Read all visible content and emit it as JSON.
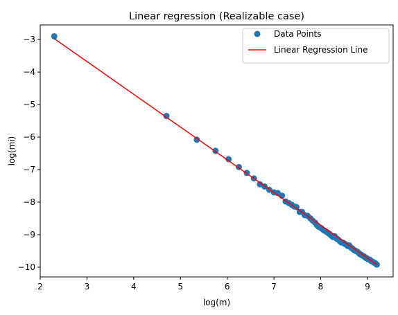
{
  "chart_data": {
    "type": "scatter",
    "title": "Linear regression (Realizable case)",
    "xlabel": "log(m)",
    "ylabel": "log(mi)",
    "xlim": [
      2.0,
      9.55
    ],
    "ylim": [
      -10.3,
      -2.55
    ],
    "xticks": [
      2,
      3,
      4,
      5,
      6,
      7,
      8,
      9
    ],
    "yticks": [
      -3,
      -4,
      -5,
      -6,
      -7,
      -8,
      -9,
      -10
    ],
    "xtick_labels": [
      "2",
      "3",
      "4",
      "5",
      "6",
      "7",
      "8",
      "9"
    ],
    "ytick_labels": [
      "−3",
      "−4",
      "−5",
      "−6",
      "−7",
      "−8",
      "−9",
      "−10"
    ],
    "grid": false,
    "legend_position": "top-right",
    "series": [
      {
        "name": "Data Points",
        "kind": "scatter",
        "color": "#1f77b4",
        "x": [
          2.3,
          4.7,
          5.35,
          5.75,
          6.03,
          6.25,
          6.42,
          6.57,
          6.7,
          6.8,
          6.9,
          7.0,
          7.08,
          7.17,
          7.25,
          7.32,
          7.38,
          7.43,
          7.48,
          7.55,
          7.6,
          7.66,
          7.72,
          7.78,
          7.83,
          7.88,
          7.92,
          7.96,
          8.01,
          8.06,
          8.1,
          8.14,
          8.18,
          8.22,
          8.26,
          8.3,
          8.34,
          8.37,
          8.41,
          8.44,
          8.48,
          8.51,
          8.55,
          8.58,
          8.61,
          8.65,
          8.68,
          8.71,
          8.75,
          8.78,
          8.81,
          8.84,
          8.87,
          8.9,
          8.93,
          8.96,
          8.99,
          9.02,
          9.05,
          9.08,
          9.11,
          9.14,
          9.17,
          9.2
        ],
        "y": [
          -2.9,
          -5.35,
          -6.08,
          -6.42,
          -6.68,
          -6.92,
          -7.1,
          -7.27,
          -7.45,
          -7.52,
          -7.62,
          -7.7,
          -7.72,
          -7.8,
          -7.98,
          -8.03,
          -8.08,
          -8.13,
          -8.15,
          -8.3,
          -8.3,
          -8.4,
          -8.42,
          -8.5,
          -8.57,
          -8.63,
          -8.71,
          -8.76,
          -8.8,
          -8.86,
          -8.89,
          -8.93,
          -8.97,
          -9.02,
          -9.07,
          -9.05,
          -9.12,
          -9.15,
          -9.2,
          -9.24,
          -9.25,
          -9.28,
          -9.31,
          -9.35,
          -9.33,
          -9.4,
          -9.43,
          -9.47,
          -9.5,
          -9.52,
          -9.56,
          -9.6,
          -9.62,
          -9.65,
          -9.67,
          -9.71,
          -9.73,
          -9.76,
          -9.77,
          -9.81,
          -9.83,
          -9.86,
          -9.88,
          -9.92
        ]
      },
      {
        "name": "Linear Regression Line",
        "kind": "line",
        "color": "#ff0000",
        "x": [
          2.3,
          9.2
        ],
        "y": [
          -2.97,
          -9.92
        ]
      }
    ]
  }
}
